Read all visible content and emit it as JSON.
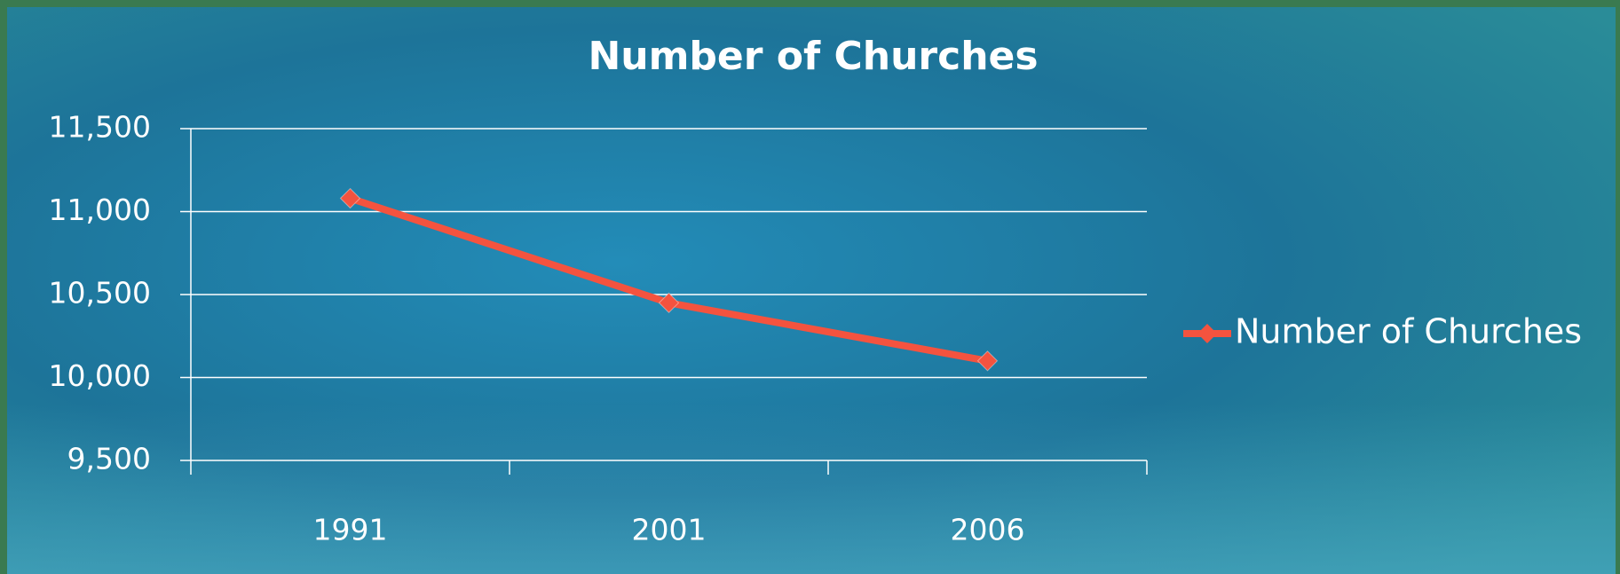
{
  "chart_data": {
    "type": "line",
    "title": "Number of Churches",
    "categories": [
      "1991",
      "2001",
      "2006"
    ],
    "series": [
      {
        "name": "Number of Churches",
        "color": "#f4533f",
        "values": [
          11080,
          10450,
          10100
        ]
      }
    ],
    "ylim": [
      9500,
      11500
    ],
    "yticks": [
      {
        "value": 9500,
        "label": "9,500"
      },
      {
        "value": 10000,
        "label": "10,000"
      },
      {
        "value": 10500,
        "label": "10,500"
      },
      {
        "value": 11000,
        "label": "11,000"
      },
      {
        "value": 11500,
        "label": "11,500"
      }
    ],
    "grid": true,
    "legend": "right"
  }
}
